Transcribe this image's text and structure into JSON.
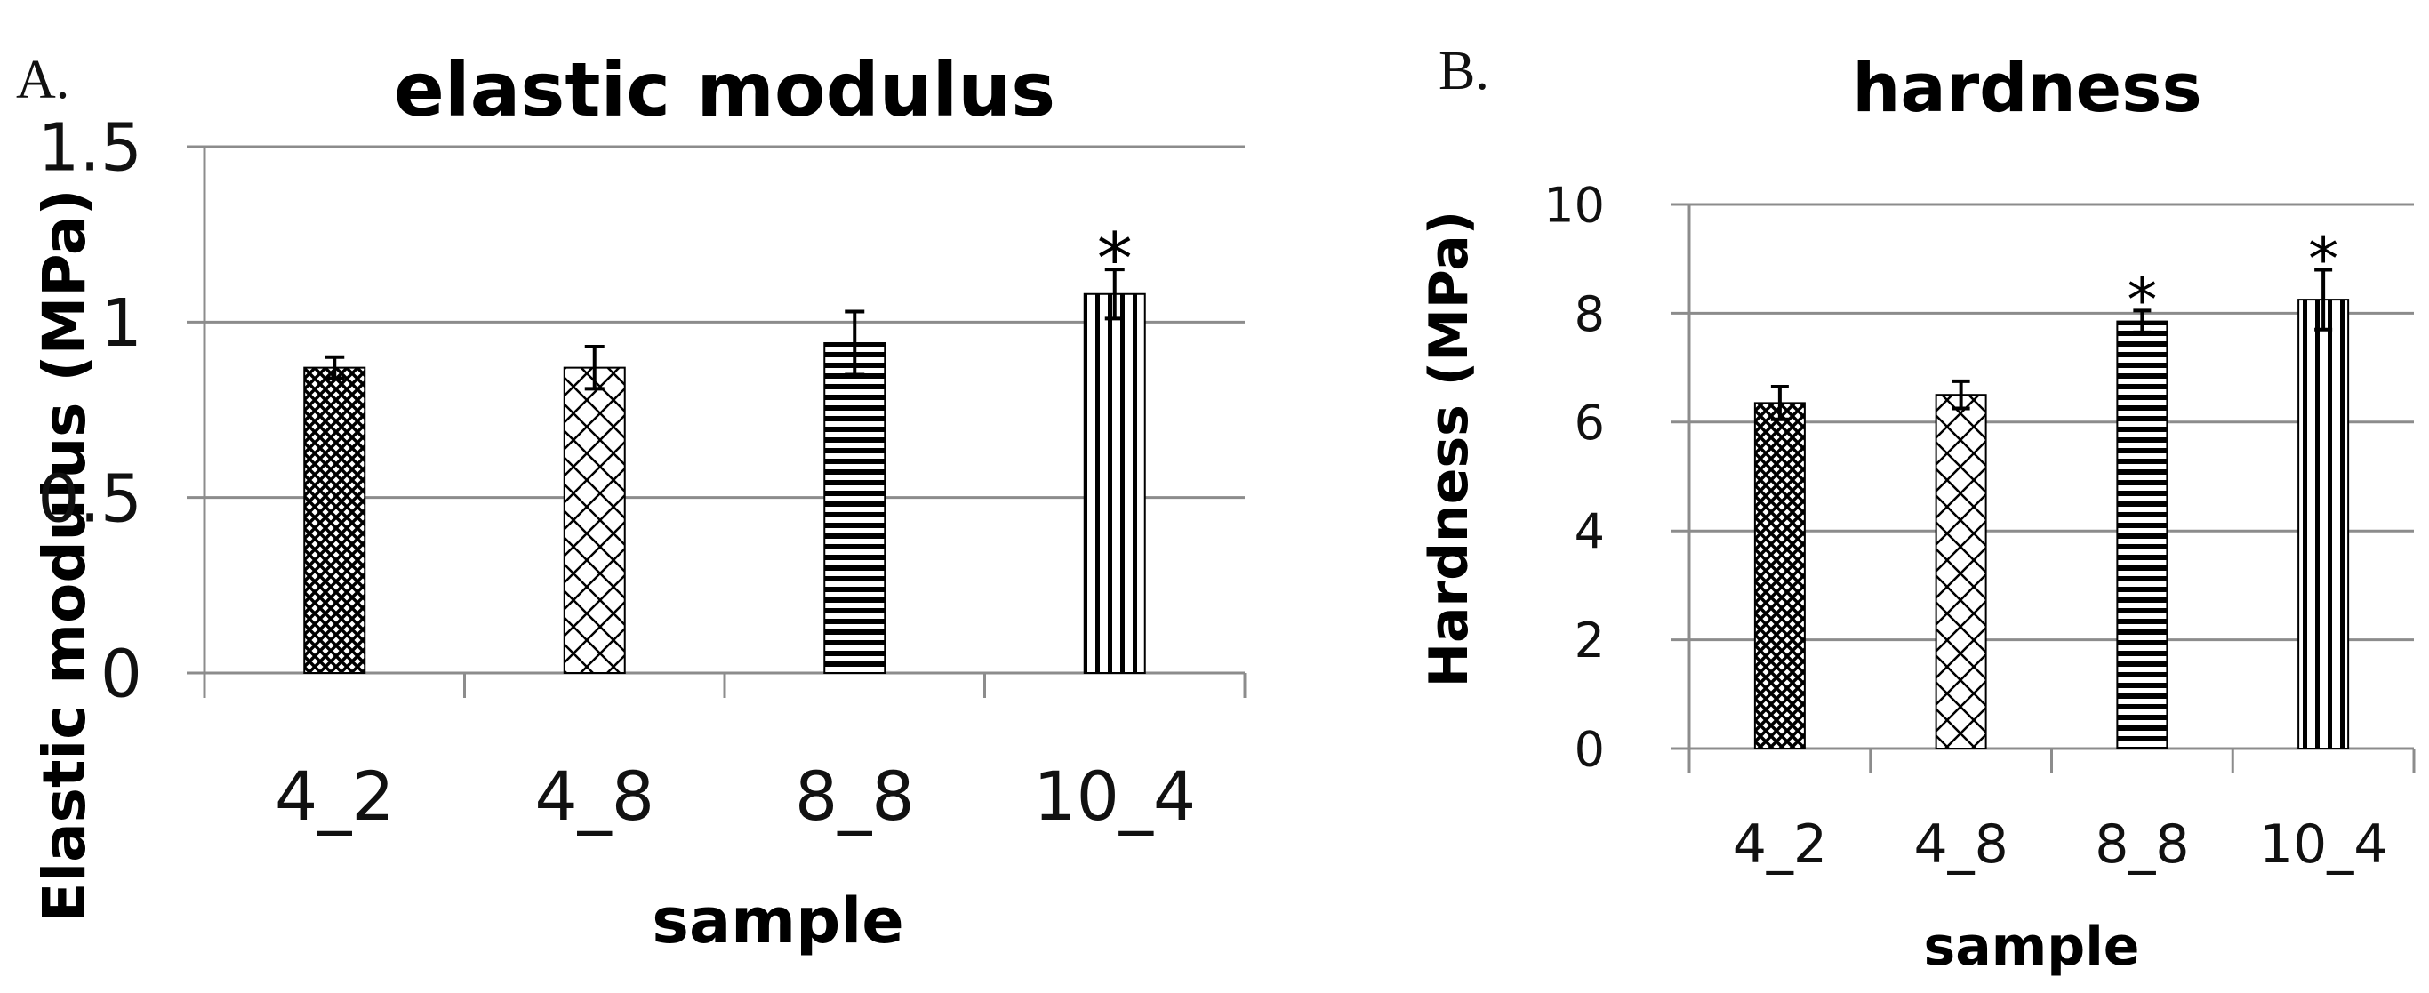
{
  "chart_data": [
    {
      "panel": "A.",
      "type": "bar",
      "title": "elastic modulus",
      "xlabel": "sample",
      "ylabel": "Elastic modulus (MPa)",
      "categories": [
        "4_2",
        "4_8",
        "8_8",
        "10_4"
      ],
      "values": [
        0.87,
        0.87,
        0.94,
        1.08
      ],
      "errors": [
        0.03,
        0.06,
        0.09,
        0.07
      ],
      "significant": [
        false,
        false,
        false,
        true
      ],
      "significance_marker": "*",
      "ylim": [
        0,
        1.5
      ],
      "yticks": [
        0,
        0.5,
        1,
        1.5
      ],
      "ytick_labels": [
        "0",
        "0.5",
        "1",
        "1.5"
      ],
      "grid": true,
      "patterns": [
        "dense-check",
        "diamond-lattice",
        "horizontal-lines",
        "vertical-lines"
      ]
    },
    {
      "panel": "B.",
      "type": "bar",
      "title": "hardness",
      "xlabel": "sample",
      "ylabel": "Hardness (MPa)",
      "categories": [
        "4_2",
        "4_8",
        "8_8",
        "10_4"
      ],
      "values": [
        6.35,
        6.5,
        7.85,
        8.25
      ],
      "errors": [
        0.3,
        0.25,
        0.2,
        0.55
      ],
      "significant": [
        false,
        false,
        true,
        true
      ],
      "significance_marker": "*",
      "ylim": [
        0,
        10
      ],
      "yticks": [
        0,
        2,
        4,
        6,
        8,
        10
      ],
      "ytick_labels": [
        "0",
        "2",
        "4",
        "6",
        "8",
        "10"
      ],
      "grid": true,
      "patterns": [
        "dense-check",
        "diamond-lattice",
        "horizontal-lines",
        "vertical-lines"
      ]
    }
  ]
}
